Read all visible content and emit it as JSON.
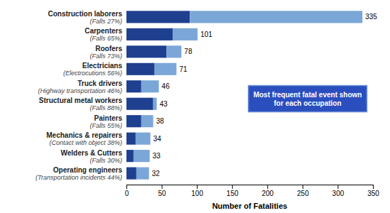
{
  "chart_data": {
    "type": "bar",
    "orientation": "horizontal",
    "stacked": true,
    "categories": [
      "Construction laborers",
      "Carpenters",
      "Roofers",
      "Electricians",
      "Truck drivers",
      "Structural metal workers",
      "Painters",
      "Mechanics & repairers",
      "Welders & Cutters",
      "Operating engineers"
    ],
    "subcategories": [
      "(Falls 27%)",
      "(Falls 65%)",
      "(Falls 73%)",
      "(Electrocutions 56%)",
      "(Highway transportation 46%)",
      "(Falls 88%)",
      "(Falls 55%)",
      "(Contact with object 38%)",
      "(Falls 30%)",
      "(Transportation incidents 44%)"
    ],
    "series": [
      {
        "color": "#1F3F8F",
        "values": [
          90,
          66,
          57,
          40,
          21,
          38,
          21,
          13,
          10,
          14
        ]
      },
      {
        "color": "#7BA7D8",
        "values": [
          245,
          35,
          21,
          31,
          25,
          5,
          17,
          21,
          23,
          18
        ]
      }
    ],
    "totals": [
      335,
      101,
      78,
      71,
      46,
      43,
      38,
      34,
      33,
      32
    ],
    "data_labels": true,
    "xlabel": "Number of Fatalities",
    "xlim": [
      0,
      350
    ],
    "xticks": [
      0,
      50,
      100,
      150,
      200,
      250,
      300,
      350
    ],
    "annotation": "Most frequent fatal event shown\nfor each occupation",
    "grid": false
  }
}
